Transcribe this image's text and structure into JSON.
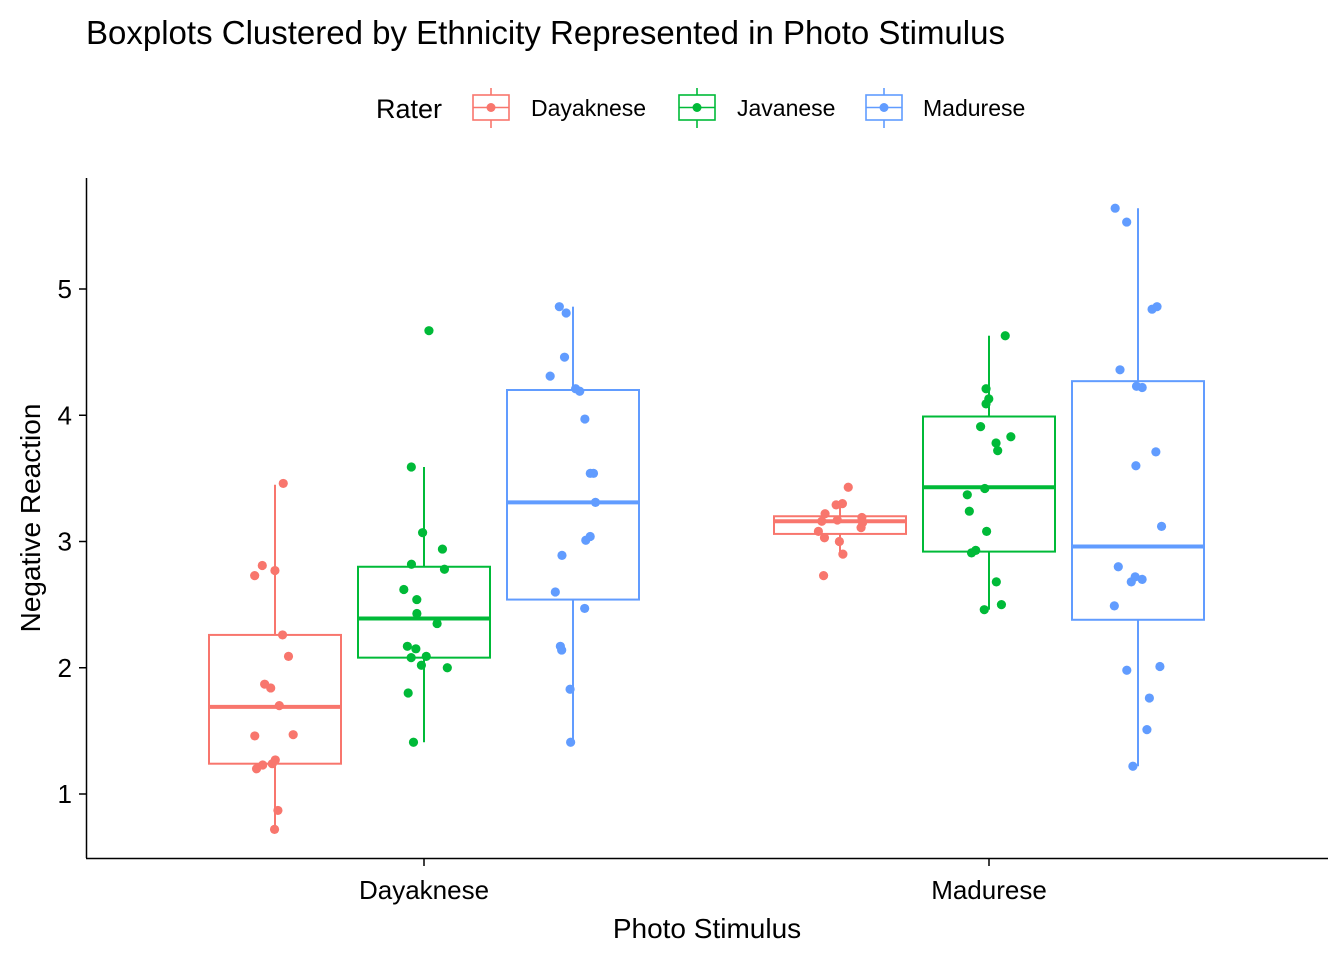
{
  "chart_data": {
    "type": "box",
    "title": "Boxplots Clustered by Ethnicity Represented in Photo Stimulus",
    "xlabel": "Photo Stimulus",
    "ylabel": "Negative Reaction",
    "categories": [
      "Dayaknese",
      "Madurese"
    ],
    "yticks": [
      1,
      2,
      3,
      4,
      5
    ],
    "ylim": [
      0.5,
      5.9
    ],
    "legend": {
      "title": "Rater",
      "position": "top"
    },
    "series": [
      {
        "name": "Dayaknese",
        "color": "#F8766D",
        "boxes": [
          {
            "category": "Dayaknese",
            "whisker_low": 0.72,
            "q1": 1.24,
            "median": 1.69,
            "q3": 2.26,
            "whisker_high": 3.45,
            "points": [
              0.72,
              0.87,
              1.2,
              1.23,
              1.24,
              1.27,
              1.46,
              1.47,
              1.7,
              1.84,
              1.87,
              2.09,
              2.26,
              2.73,
              2.77,
              2.81,
              3.46
            ]
          },
          {
            "category": "Madurese",
            "whisker_low": 2.9,
            "q1": 3.06,
            "median": 3.16,
            "q3": 3.2,
            "whisker_high": 3.28,
            "points": [
              2.73,
              2.9,
              3.0,
              3.03,
              3.08,
              3.11,
              3.15,
              3.16,
              3.17,
              3.19,
              3.22,
              3.29,
              3.3,
              3.43
            ]
          }
        ]
      },
      {
        "name": "Javanese",
        "color": "#00BA38",
        "boxes": [
          {
            "category": "Dayaknese",
            "whisker_low": 1.41,
            "q1": 2.08,
            "median": 2.39,
            "q3": 2.8,
            "whisker_high": 3.59,
            "points": [
              1.41,
              1.8,
              2.0,
              2.02,
              2.08,
              2.09,
              2.15,
              2.17,
              2.35,
              2.43,
              2.54,
              2.62,
              2.78,
              2.82,
              2.94,
              3.07,
              3.59,
              4.67
            ]
          },
          {
            "category": "Madurese",
            "whisker_low": 2.46,
            "q1": 2.92,
            "median": 3.43,
            "q3": 3.99,
            "whisker_high": 4.63,
            "points": [
              2.46,
              2.5,
              2.68,
              2.91,
              2.93,
              3.08,
              3.24,
              3.37,
              3.42,
              3.72,
              3.78,
              3.83,
              3.91,
              4.09,
              4.13,
              4.21,
              4.63
            ]
          }
        ]
      },
      {
        "name": "Madurese",
        "color": "#619CFF",
        "boxes": [
          {
            "category": "Dayaknese",
            "whisker_low": 1.41,
            "q1": 2.54,
            "median": 3.31,
            "q3": 4.2,
            "whisker_high": 4.86,
            "points": [
              1.41,
              1.83,
              2.14,
              2.17,
              2.47,
              2.6,
              2.89,
              3.01,
              3.04,
              3.31,
              3.54,
              3.54,
              3.97,
              4.19,
              4.21,
              4.31,
              4.46,
              4.81,
              4.86
            ]
          },
          {
            "category": "Madurese",
            "whisker_low": 1.22,
            "q1": 2.38,
            "median": 2.96,
            "q3": 4.27,
            "whisker_high": 5.64,
            "points": [
              1.22,
              1.51,
              1.76,
              1.98,
              2.01,
              2.49,
              2.68,
              2.7,
              2.72,
              2.8,
              3.12,
              3.6,
              3.71,
              4.22,
              4.23,
              4.36,
              4.84,
              4.86,
              5.53,
              5.64
            ]
          }
        ]
      }
    ]
  }
}
